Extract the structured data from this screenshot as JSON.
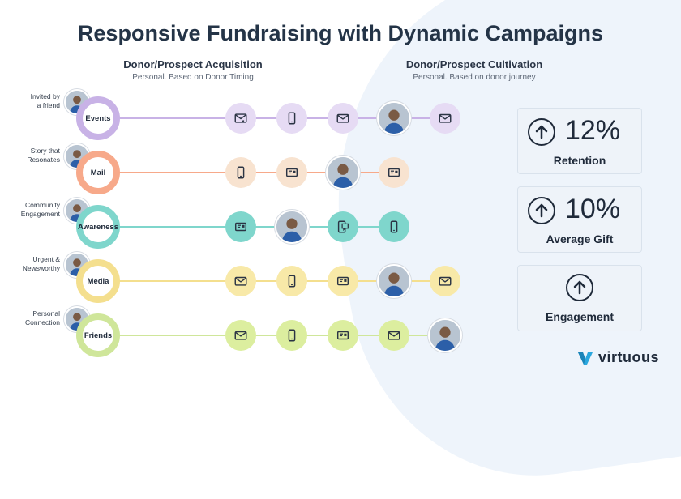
{
  "title": "Responsive Fundraising with Dynamic Campaigns",
  "columns": {
    "acquisition": {
      "heading": "Donor/Prospect Acquisition",
      "sub": "Personal. Based on Donor Timing"
    },
    "cultivation": {
      "heading": "Donor/Prospect Cultivation",
      "sub": "Personal. Based on donor journey"
    }
  },
  "rows": [
    {
      "label_lines": [
        "Invited by",
        "a friend"
      ],
      "channel": "Events",
      "color": "#c8b2e6",
      "light": "#e6dbf4",
      "nodes": [
        "email-heart-icon",
        "phone-icon",
        "email-icon",
        "photo",
        "email-icon"
      ]
    },
    {
      "label_lines": [
        "Story that",
        "Resonates"
      ],
      "channel": "Mail",
      "color": "#f7a98a",
      "light": "#f8e3d0",
      "nodes": [
        "phone-icon",
        "mail-card-icon",
        "photo",
        "mail-card-icon"
      ]
    },
    {
      "label_lines": [
        "Community",
        "Engagement"
      ],
      "channel": "Awareness",
      "color": "#7fd6cc",
      "light": "#7fd6cc",
      "nodes": [
        "mail-card-icon",
        "photo",
        "sms-icon",
        "phone-icon"
      ]
    },
    {
      "label_lines": [
        "Urgent &",
        "Newsworthy"
      ],
      "channel": "Media",
      "color": "#f4df8e",
      "light": "#f8e9a8",
      "nodes": [
        "email-icon",
        "phone-icon",
        "mail-card-icon",
        "photo",
        "email-icon"
      ]
    },
    {
      "label_lines": [
        "Personal",
        "Connection"
      ],
      "channel": "Friends",
      "color": "#cfe69a",
      "light": "#dcee9f",
      "nodes": [
        "email-icon",
        "phone-icon",
        "mail-card-icon",
        "email-icon",
        "photo"
      ]
    }
  ],
  "stats": [
    {
      "value": "12%",
      "label": "Retention"
    },
    {
      "value": "10%",
      "label": "Average Gift"
    },
    {
      "value": "",
      "label": "Engagement"
    }
  ],
  "brand": "virtuous",
  "colors": {
    "text": "#1f2a3a",
    "brand": "#2aa7de"
  }
}
